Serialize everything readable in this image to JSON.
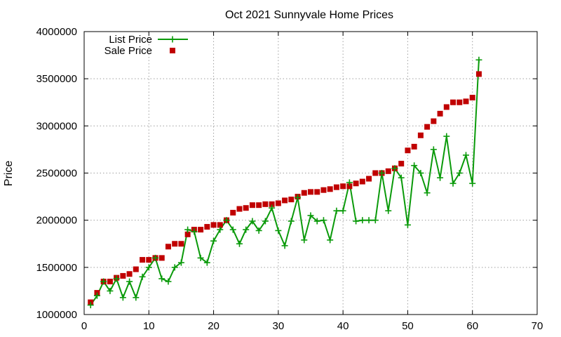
{
  "chart_data": {
    "type": "line",
    "title": "Oct 2021 Sunnyvale Home Prices",
    "xlabel": "",
    "ylabel": "Price",
    "xlim": [
      0,
      70
    ],
    "ylim": [
      1000000,
      4000000
    ],
    "xticks": [
      0,
      10,
      20,
      30,
      40,
      50,
      60,
      70
    ],
    "yticks": [
      1000000,
      1500000,
      2000000,
      2500000,
      3000000,
      3500000,
      4000000
    ],
    "grid": true,
    "legend_position": "top-left",
    "series": [
      {
        "name": "List Price",
        "style": "linespoints",
        "marker": "plus",
        "color": "#0a9a0a",
        "x": [
          1,
          2,
          3,
          4,
          5,
          6,
          7,
          8,
          9,
          10,
          11,
          12,
          13,
          14,
          15,
          16,
          17,
          18,
          19,
          20,
          21,
          22,
          23,
          24,
          25,
          26,
          27,
          28,
          29,
          30,
          31,
          32,
          33,
          34,
          35,
          36,
          37,
          38,
          39,
          40,
          41,
          42,
          43,
          44,
          45,
          46,
          47,
          48,
          49,
          50,
          51,
          52,
          53,
          54,
          55,
          56,
          57,
          58,
          59,
          60,
          61
        ],
        "y": [
          1100000,
          1200000,
          1350000,
          1250000,
          1380000,
          1180000,
          1350000,
          1180000,
          1400000,
          1500000,
          1600000,
          1380000,
          1350000,
          1500000,
          1550000,
          1900000,
          1880000,
          1600000,
          1550000,
          1780000,
          1900000,
          2000000,
          1900000,
          1750000,
          1900000,
          1990000,
          1890000,
          1990000,
          2130000,
          1890000,
          1730000,
          1990000,
          2240000,
          1790000,
          2050000,
          1990000,
          2000000,
          1790000,
          2100000,
          2100000,
          2400000,
          1990000,
          2000000,
          2000000,
          2000000,
          2500000,
          2100000,
          2550000,
          2450000,
          1950000,
          2580000,
          2500000,
          2290000,
          2750000,
          2450000,
          2890000,
          2390000,
          2500000,
          2690000,
          2390000,
          3700000
        ]
      },
      {
        "name": "Sale Price",
        "style": "points",
        "marker": "square",
        "color": "#c00000",
        "x": [
          1,
          2,
          3,
          4,
          5,
          6,
          7,
          8,
          9,
          10,
          11,
          12,
          13,
          14,
          15,
          16,
          17,
          18,
          19,
          20,
          21,
          22,
          23,
          24,
          25,
          26,
          27,
          28,
          29,
          30,
          31,
          32,
          33,
          34,
          35,
          36,
          37,
          38,
          39,
          40,
          41,
          42,
          43,
          44,
          45,
          46,
          47,
          48,
          49,
          50,
          51,
          52,
          53,
          54,
          55,
          56,
          57,
          58,
          59,
          60,
          61
        ],
        "y": [
          1130000,
          1230000,
          1350000,
          1350000,
          1390000,
          1410000,
          1430000,
          1480000,
          1580000,
          1580000,
          1600000,
          1600000,
          1720000,
          1750000,
          1750000,
          1850000,
          1900000,
          1900000,
          1930000,
          1950000,
          1950000,
          2000000,
          2080000,
          2120000,
          2130000,
          2160000,
          2160000,
          2170000,
          2170000,
          2180000,
          2210000,
          2220000,
          2250000,
          2290000,
          2300000,
          2300000,
          2320000,
          2330000,
          2350000,
          2360000,
          2360000,
          2390000,
          2410000,
          2440000,
          2500000,
          2500000,
          2520000,
          2550000,
          2600000,
          2740000,
          2780000,
          2900000,
          2990000,
          3050000,
          3130000,
          3200000,
          3250000,
          3250000,
          3260000,
          3300000,
          3550000
        ]
      }
    ]
  }
}
